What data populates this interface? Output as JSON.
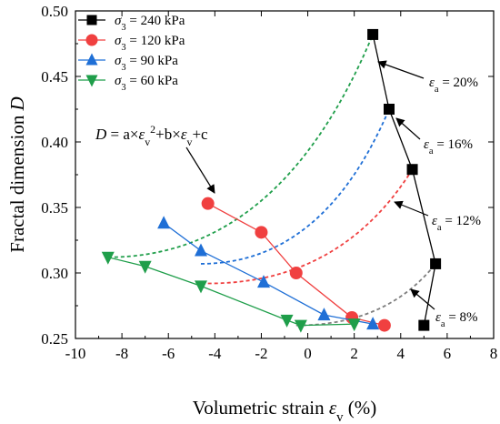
{
  "chart_data": {
    "type": "scatter",
    "xlabel": "Volumetric strain ε_v (%)",
    "ylabel": "Fractal dimension D",
    "xlim": [
      -10,
      8
    ],
    "ylim": [
      0.25,
      0.5
    ],
    "x_ticks": [
      "-10",
      "-8",
      "-6",
      "-4",
      "-2",
      "0",
      "2",
      "4",
      "6",
      "8"
    ],
    "y_ticks": [
      "0.25",
      "0.30",
      "0.35",
      "0.40",
      "0.45",
      "0.50"
    ],
    "legend_position": "top-left",
    "series": [
      {
        "name": "σ3 = 240 kPa",
        "color": "#000000",
        "marker": "square",
        "points": [
          [
            5.0,
            0.26
          ],
          [
            5.5,
            0.307
          ],
          [
            4.5,
            0.379
          ],
          [
            3.5,
            0.425
          ],
          [
            2.8,
            0.482
          ]
        ]
      },
      {
        "name": "σ3 = 120 kPa",
        "color": "#f04040",
        "marker": "circle",
        "points": [
          [
            3.3,
            0.26
          ],
          [
            1.9,
            0.266
          ],
          [
            -0.5,
            0.3
          ],
          [
            -2.0,
            0.331
          ],
          [
            -4.3,
            0.353
          ]
        ]
      },
      {
        "name": "σ3 = 90 kPa",
        "color": "#1f6fd6",
        "marker": "triangle-up",
        "points": [
          [
            2.8,
            0.261
          ],
          [
            0.7,
            0.268
          ],
          [
            -1.9,
            0.293
          ],
          [
            -4.6,
            0.317
          ],
          [
            -6.2,
            0.338
          ]
        ]
      },
      {
        "name": "σ3 = 60 kPa",
        "color": "#1f9e4a",
        "marker": "triangle-down",
        "points": [
          [
            2.0,
            0.261
          ],
          [
            -0.3,
            0.26
          ],
          [
            -0.9,
            0.264
          ],
          [
            -4.6,
            0.29
          ],
          [
            -7.0,
            0.305
          ],
          [
            -8.6,
            0.312
          ]
        ]
      }
    ],
    "fit_curves": [
      {
        "label": "ε_a = 8%",
        "color": "#7f7f7f",
        "points": [
          [
            -0.5,
            0.26
          ],
          [
            5.5,
            0.307
          ]
        ]
      },
      {
        "label": "ε_a = 12%",
        "color": "#f04040",
        "points": [
          [
            -4.3,
            0.292
          ],
          [
            4.5,
            0.379
          ]
        ]
      },
      {
        "label": "ε_a = 16%",
        "color": "#1f6fd6",
        "points": [
          [
            -4.6,
            0.307
          ],
          [
            3.5,
            0.425
          ]
        ]
      },
      {
        "label": "ε_a = 20%",
        "color": "#1f9e4a",
        "points": [
          [
            -8.6,
            0.312
          ],
          [
            2.8,
            0.482
          ]
        ]
      }
    ],
    "equation": "D = a×ε_v²+b×ε_v+c"
  }
}
